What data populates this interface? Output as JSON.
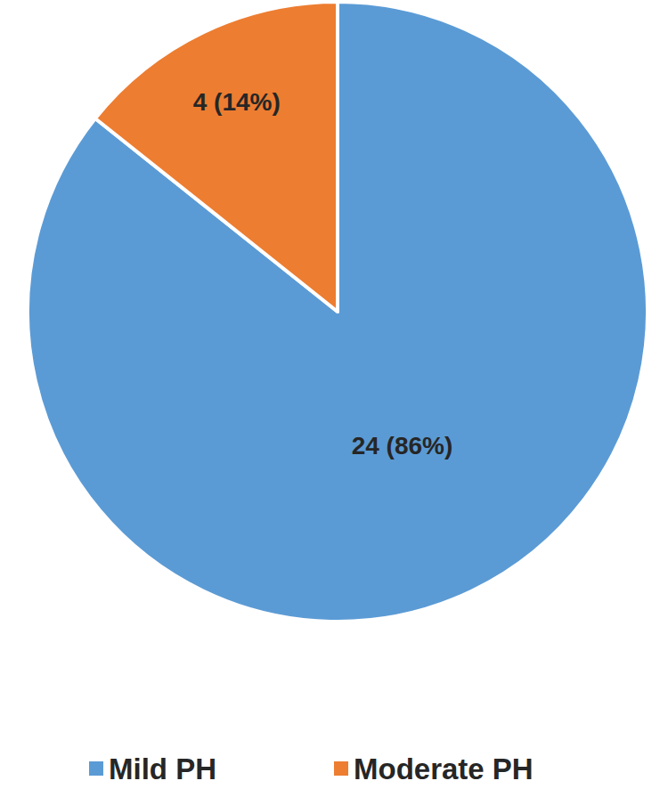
{
  "chart_data": {
    "type": "pie",
    "categories": [
      "Mild PH",
      "Moderate PH"
    ],
    "values": [
      24,
      4
    ],
    "value_labels": [
      "24 (86%)",
      "4 (14%)"
    ],
    "colors": [
      "#5b9bd5",
      "#ed7d31"
    ],
    "data_labels": true,
    "legend": "bottom"
  }
}
